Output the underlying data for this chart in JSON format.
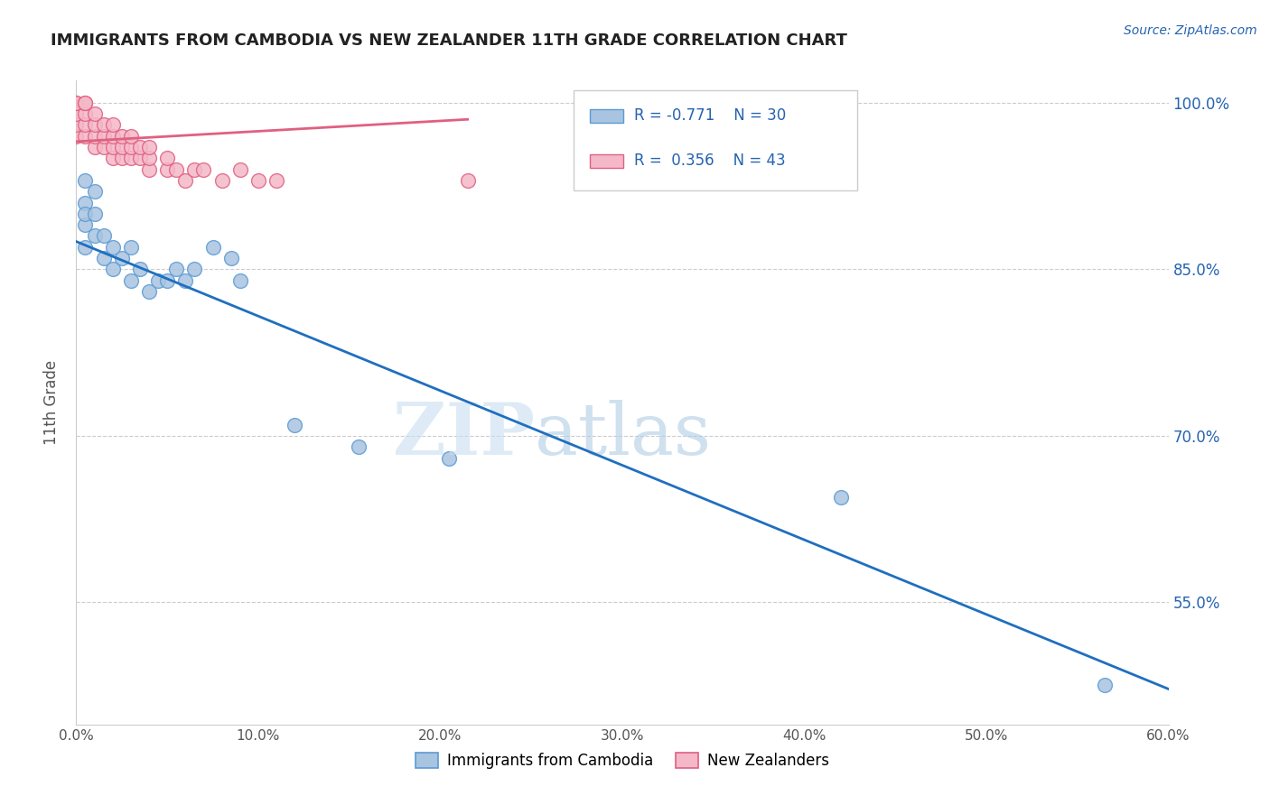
{
  "title": "IMMIGRANTS FROM CAMBODIA VS NEW ZEALANDER 11TH GRADE CORRELATION CHART",
  "source_text": "Source: ZipAtlas.com",
  "ylabel": "11th Grade",
  "xlabel": "",
  "xlim": [
    0.0,
    0.6
  ],
  "ylim": [
    0.44,
    1.02
  ],
  "xtick_labels": [
    "0.0%",
    "10.0%",
    "20.0%",
    "30.0%",
    "40.0%",
    "50.0%",
    "60.0%"
  ],
  "xtick_values": [
    0.0,
    0.1,
    0.2,
    0.3,
    0.4,
    0.5,
    0.6
  ],
  "ytick_labels": [
    "55.0%",
    "70.0%",
    "85.0%",
    "100.0%"
  ],
  "ytick_values": [
    0.55,
    0.7,
    0.85,
    1.0
  ],
  "cambodia_color": "#a8c4e0",
  "cambodia_edge_color": "#5b9bd5",
  "nz_color": "#f4b8c8",
  "nz_edge_color": "#e06080",
  "cambodia_R": -0.771,
  "cambodia_N": 30,
  "nz_R": 0.356,
  "nz_N": 43,
  "cambodia_line_color": "#1f6fbf",
  "nz_line_color": "#e06080",
  "legend_R_color": "#2563b0",
  "background_color": "#ffffff",
  "grid_color": "#cccccc",
  "cambodia_scatter_x": [
    0.005,
    0.005,
    0.005,
    0.005,
    0.005,
    0.01,
    0.01,
    0.01,
    0.015,
    0.015,
    0.02,
    0.02,
    0.025,
    0.03,
    0.03,
    0.035,
    0.04,
    0.045,
    0.05,
    0.055,
    0.06,
    0.065,
    0.075,
    0.085,
    0.09,
    0.12,
    0.155,
    0.205,
    0.42,
    0.565
  ],
  "cambodia_scatter_y": [
    0.89,
    0.91,
    0.93,
    0.87,
    0.9,
    0.88,
    0.9,
    0.92,
    0.86,
    0.88,
    0.85,
    0.87,
    0.86,
    0.84,
    0.87,
    0.85,
    0.83,
    0.84,
    0.84,
    0.85,
    0.84,
    0.85,
    0.87,
    0.86,
    0.84,
    0.71,
    0.69,
    0.68,
    0.645,
    0.476
  ],
  "nz_scatter_x": [
    0.0,
    0.0,
    0.0,
    0.0,
    0.0,
    0.005,
    0.005,
    0.005,
    0.005,
    0.005,
    0.01,
    0.01,
    0.01,
    0.01,
    0.015,
    0.015,
    0.015,
    0.02,
    0.02,
    0.02,
    0.02,
    0.025,
    0.025,
    0.025,
    0.03,
    0.03,
    0.03,
    0.035,
    0.035,
    0.04,
    0.04,
    0.04,
    0.05,
    0.05,
    0.055,
    0.06,
    0.065,
    0.07,
    0.08,
    0.09,
    0.1,
    0.11,
    0.215
  ],
  "nz_scatter_y": [
    0.97,
    0.98,
    0.99,
    1.0,
    1.0,
    0.97,
    0.98,
    0.99,
    1.0,
    1.0,
    0.96,
    0.97,
    0.98,
    0.99,
    0.96,
    0.97,
    0.98,
    0.95,
    0.96,
    0.97,
    0.98,
    0.95,
    0.96,
    0.97,
    0.95,
    0.96,
    0.97,
    0.95,
    0.96,
    0.94,
    0.95,
    0.96,
    0.94,
    0.95,
    0.94,
    0.93,
    0.94,
    0.94,
    0.93,
    0.94,
    0.93,
    0.93,
    0.93
  ],
  "cam_line_x0": 0.0,
  "cam_line_y0": 0.875,
  "cam_line_x1": 0.6,
  "cam_line_y1": 0.472,
  "nz_line_x0": 0.0,
  "nz_line_y0": 0.965,
  "nz_line_x1": 0.215,
  "nz_line_y1": 0.985
}
